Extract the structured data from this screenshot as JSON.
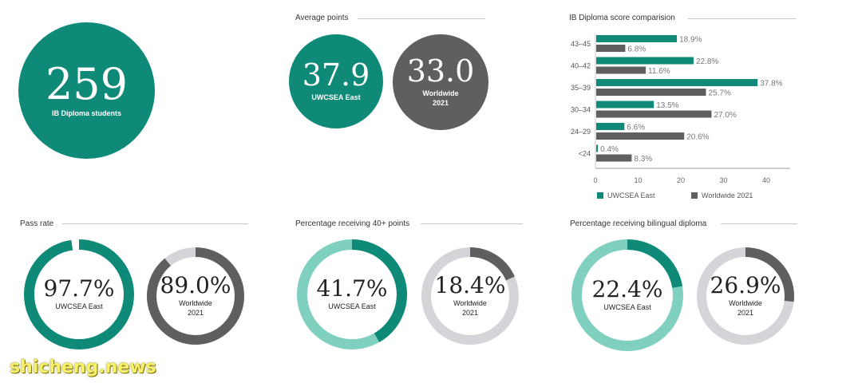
{
  "colors": {
    "teal": "#0f8a78",
    "teal_light": "#7fd0bf",
    "gray_dark": "#5f5f5f",
    "gray_light": "#d5d4d8"
  },
  "students": {
    "number": "259",
    "label": "IB Diploma students"
  },
  "average_points": {
    "title": "Average points",
    "east": {
      "value": "37.9",
      "label": "UWCSEA East"
    },
    "world": {
      "value": "33.0",
      "label_line1": "Worldwide",
      "label_line2": "2021"
    }
  },
  "pass_rate": {
    "title": "Pass rate",
    "east": {
      "text": "97.7%",
      "percent": 97.7,
      "label_line1": "UWCSEA East",
      "label_line2": ""
    },
    "world": {
      "text": "89.0%",
      "percent": 89.0,
      "label_line1": "Worldwide",
      "label_line2": "2021"
    }
  },
  "forty_plus": {
    "title": "Percentage receiving 40+ points",
    "east": {
      "text": "41.7%",
      "percent": 41.7,
      "label_line1": "UWCSEA East",
      "label_line2": ""
    },
    "world": {
      "text": "18.4%",
      "percent": 18.4,
      "label_line1": "Worldwide",
      "label_line2": "2021"
    }
  },
  "bilingual": {
    "title": "Percentage receiving bilingual diploma",
    "east": {
      "text": "22.4%",
      "percent": 22.4,
      "label_line1": "UWCSEA East",
      "label_line2": ""
    },
    "world": {
      "text": "26.9%",
      "percent": 26.9,
      "label_line1": "Worldwide",
      "label_line2": "2021"
    }
  },
  "chart_data": {
    "type": "bar",
    "orientation": "horizontal",
    "title": "IB Diploma score comparision",
    "categories": [
      "43–45",
      "40–42",
      "35–39",
      "30–34",
      "24–29",
      "<24"
    ],
    "series": [
      {
        "name": "UWCSEA East",
        "values": [
          18.9,
          22.8,
          37.8,
          13.5,
          6.6,
          0.4
        ],
        "labels": [
          "18.9%",
          "22.8%",
          "37.8%",
          "13.5%",
          "6.6%",
          "0.4%"
        ]
      },
      {
        "name": "Worldwide 2021",
        "values": [
          6.8,
          11.6,
          25.7,
          27.0,
          20.6,
          8.3
        ],
        "labels": [
          "6.8%",
          "11.6%",
          "25.7%",
          "27.0%",
          "20.6%",
          "8.3%"
        ]
      }
    ],
    "x_ticks": [
      "0",
      "10",
      "20",
      "30",
      "40"
    ],
    "xlim": [
      0,
      45
    ],
    "grid": false,
    "legend_position": "bottom"
  },
  "watermark": "shicheng.news"
}
